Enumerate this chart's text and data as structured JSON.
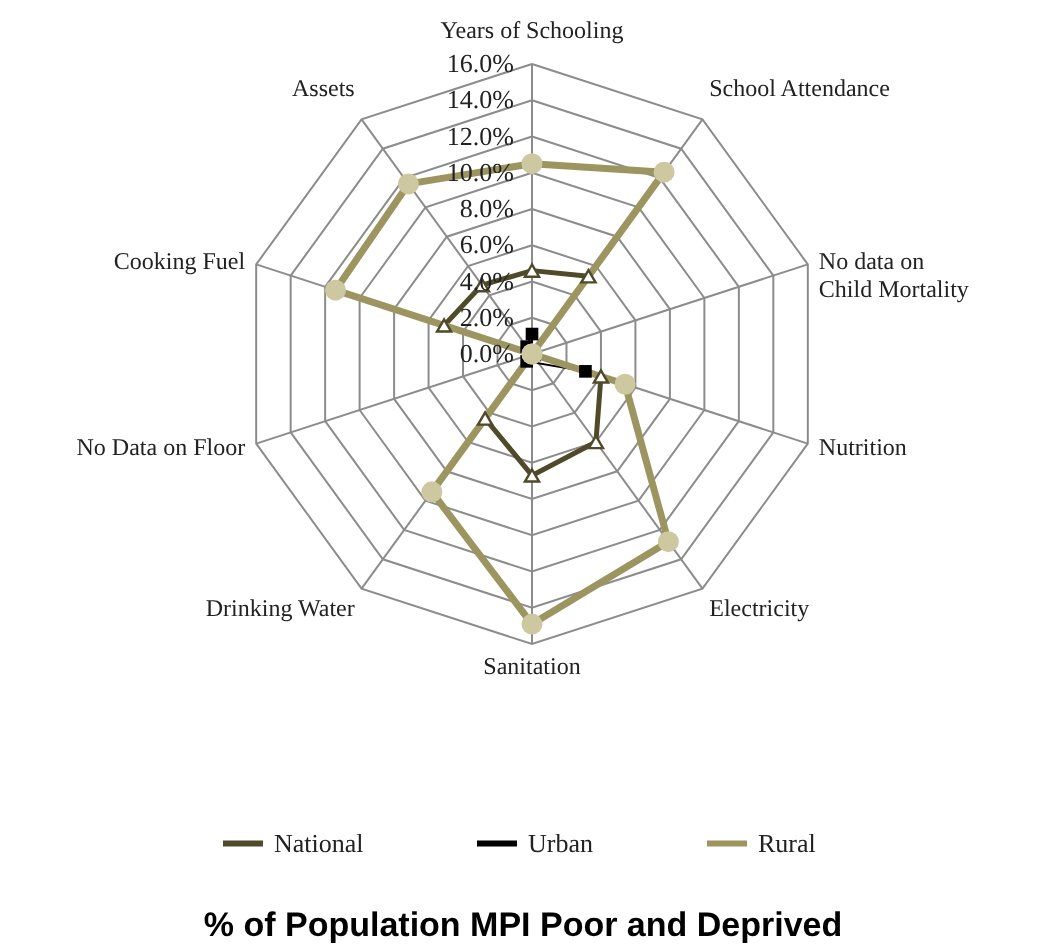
{
  "chart_data": {
    "type": "radar",
    "title": "% of Population MPI Poor and Deprived",
    "categories": [
      "Years of Schooling",
      "School Attendance",
      "No data on Child Mortality",
      "Nutrition",
      "Electricity",
      "Sanitation",
      "Drinking Water",
      "No Data on Floor",
      "Cooking Fuel",
      "Assets"
    ],
    "series": [
      {
        "name": "National",
        "color": "#4f4a2a",
        "marker": "triangle",
        "values": [
          4.6,
          5.3,
          0,
          4.0,
          6.0,
          6.7,
          4.4,
          0,
          5.1,
          4.7
        ]
      },
      {
        "name": "Urban",
        "color": "#000000",
        "marker": "square",
        "values": [
          1.1,
          null,
          0,
          3.1,
          null,
          null,
          0.5,
          0,
          null,
          0.5
        ]
      },
      {
        "name": "Rural",
        "color": "#9c9560",
        "marker": "circle",
        "values": [
          10.5,
          12.4,
          0,
          5.4,
          12.8,
          14.9,
          9.4,
          0,
          11.4,
          11.6
        ]
      }
    ],
    "ylim": [
      0,
      16
    ],
    "yticks": [
      {
        "value": 0,
        "label": "0.0%"
      },
      {
        "value": 2,
        "label": "2.0%"
      },
      {
        "value": 4,
        "label": "4.0%"
      },
      {
        "value": 6,
        "label": "6.0%"
      },
      {
        "value": 8,
        "label": "8.0%"
      },
      {
        "value": 10,
        "label": "10.0%"
      },
      {
        "value": 12,
        "label": "12.0%"
      },
      {
        "value": 14,
        "label": "14.0%"
      },
      {
        "value": 16,
        "label": "16.0%"
      }
    ],
    "grid": true,
    "legend": "bottom",
    "line_style": "solid"
  }
}
